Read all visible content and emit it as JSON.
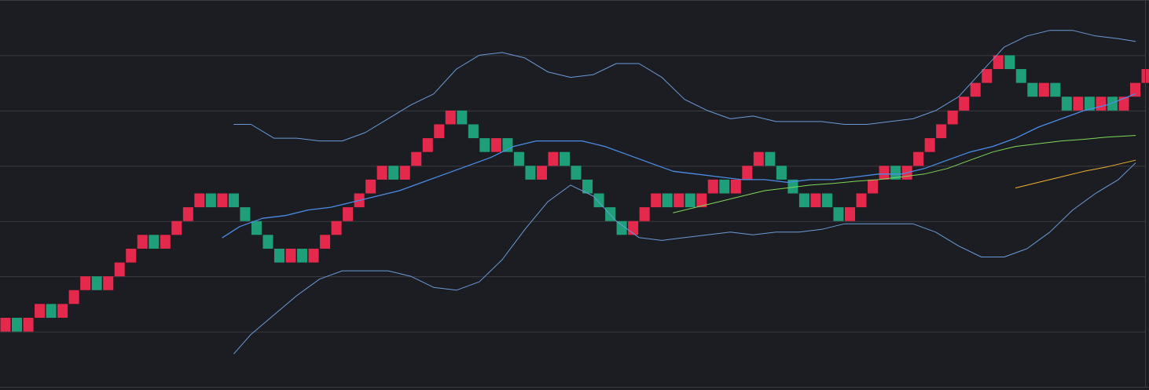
{
  "chart_data": {
    "type": "renko",
    "title": "",
    "xlabel": "",
    "ylabel": "",
    "grid": true,
    "ylim": [
      0,
      7
    ],
    "bricks": [
      {
        "col": 0,
        "low": 1.0,
        "dir": "up"
      },
      {
        "col": 1,
        "low": 1.0,
        "dir": "down"
      },
      {
        "col": 2,
        "low": 1.0,
        "dir": "up"
      },
      {
        "col": 3,
        "low": 1.25,
        "dir": "up"
      },
      {
        "col": 4,
        "low": 1.25,
        "dir": "down"
      },
      {
        "col": 5,
        "low": 1.25,
        "dir": "up"
      },
      {
        "col": 6,
        "low": 1.5,
        "dir": "up"
      },
      {
        "col": 7,
        "low": 1.75,
        "dir": "up"
      },
      {
        "col": 8,
        "low": 1.75,
        "dir": "down"
      },
      {
        "col": 9,
        "low": 1.75,
        "dir": "up"
      },
      {
        "col": 10,
        "low": 2.0,
        "dir": "up"
      },
      {
        "col": 11,
        "low": 2.25,
        "dir": "up"
      },
      {
        "col": 12,
        "low": 2.5,
        "dir": "up"
      },
      {
        "col": 13,
        "low": 2.5,
        "dir": "down"
      },
      {
        "col": 14,
        "low": 2.5,
        "dir": "up"
      },
      {
        "col": 15,
        "low": 2.75,
        "dir": "up"
      },
      {
        "col": 16,
        "low": 3.0,
        "dir": "up"
      },
      {
        "col": 17,
        "low": 3.25,
        "dir": "up"
      },
      {
        "col": 18,
        "low": 3.25,
        "dir": "down"
      },
      {
        "col": 19,
        "low": 3.25,
        "dir": "up"
      },
      {
        "col": 20,
        "low": 3.25,
        "dir": "down"
      },
      {
        "col": 21,
        "low": 3.0,
        "dir": "down"
      },
      {
        "col": 22,
        "low": 2.75,
        "dir": "down"
      },
      {
        "col": 23,
        "low": 2.5,
        "dir": "down"
      },
      {
        "col": 24,
        "low": 2.25,
        "dir": "down"
      },
      {
        "col": 25,
        "low": 2.25,
        "dir": "up"
      },
      {
        "col": 26,
        "low": 2.25,
        "dir": "down"
      },
      {
        "col": 27,
        "low": 2.25,
        "dir": "up"
      },
      {
        "col": 28,
        "low": 2.5,
        "dir": "up"
      },
      {
        "col": 29,
        "low": 2.75,
        "dir": "up"
      },
      {
        "col": 30,
        "low": 3.0,
        "dir": "up"
      },
      {
        "col": 31,
        "low": 3.25,
        "dir": "up"
      },
      {
        "col": 32,
        "low": 3.5,
        "dir": "up"
      },
      {
        "col": 33,
        "low": 3.75,
        "dir": "up"
      },
      {
        "col": 34,
        "low": 3.75,
        "dir": "down"
      },
      {
        "col": 35,
        "low": 3.75,
        "dir": "up"
      },
      {
        "col": 36,
        "low": 4.0,
        "dir": "up"
      },
      {
        "col": 37,
        "low": 4.25,
        "dir": "up"
      },
      {
        "col": 38,
        "low": 4.5,
        "dir": "up"
      },
      {
        "col": 39,
        "low": 4.75,
        "dir": "up"
      },
      {
        "col": 40,
        "low": 4.75,
        "dir": "down"
      },
      {
        "col": 41,
        "low": 4.5,
        "dir": "down"
      },
      {
        "col": 42,
        "low": 4.25,
        "dir": "down"
      },
      {
        "col": 43,
        "low": 4.25,
        "dir": "up"
      },
      {
        "col": 44,
        "low": 4.25,
        "dir": "down"
      },
      {
        "col": 45,
        "low": 4.0,
        "dir": "down"
      },
      {
        "col": 46,
        "low": 3.75,
        "dir": "down"
      },
      {
        "col": 47,
        "low": 3.75,
        "dir": "up"
      },
      {
        "col": 48,
        "low": 4.0,
        "dir": "up"
      },
      {
        "col": 49,
        "low": 4.0,
        "dir": "down"
      },
      {
        "col": 50,
        "low": 3.75,
        "dir": "down"
      },
      {
        "col": 51,
        "low": 3.5,
        "dir": "down"
      },
      {
        "col": 52,
        "low": 3.25,
        "dir": "down"
      },
      {
        "col": 53,
        "low": 3.0,
        "dir": "down"
      },
      {
        "col": 54,
        "low": 2.75,
        "dir": "down"
      },
      {
        "col": 55,
        "low": 2.75,
        "dir": "up"
      },
      {
        "col": 56,
        "low": 3.0,
        "dir": "up"
      },
      {
        "col": 57,
        "low": 3.25,
        "dir": "up"
      },
      {
        "col": 58,
        "low": 3.25,
        "dir": "down"
      },
      {
        "col": 59,
        "low": 3.25,
        "dir": "up"
      },
      {
        "col": 60,
        "low": 3.25,
        "dir": "down"
      },
      {
        "col": 61,
        "low": 3.25,
        "dir": "up"
      },
      {
        "col": 62,
        "low": 3.5,
        "dir": "up"
      },
      {
        "col": 63,
        "low": 3.5,
        "dir": "down"
      },
      {
        "col": 64,
        "low": 3.5,
        "dir": "up"
      },
      {
        "col": 65,
        "low": 3.75,
        "dir": "up"
      },
      {
        "col": 66,
        "low": 4.0,
        "dir": "up"
      },
      {
        "col": 67,
        "low": 4.0,
        "dir": "down"
      },
      {
        "col": 68,
        "low": 3.75,
        "dir": "down"
      },
      {
        "col": 69,
        "low": 3.5,
        "dir": "down"
      },
      {
        "col": 70,
        "low": 3.25,
        "dir": "down"
      },
      {
        "col": 71,
        "low": 3.25,
        "dir": "up"
      },
      {
        "col": 72,
        "low": 3.25,
        "dir": "down"
      },
      {
        "col": 73,
        "low": 3.0,
        "dir": "down"
      },
      {
        "col": 74,
        "low": 3.0,
        "dir": "up"
      },
      {
        "col": 75,
        "low": 3.25,
        "dir": "up"
      },
      {
        "col": 76,
        "low": 3.5,
        "dir": "up"
      },
      {
        "col": 77,
        "low": 3.75,
        "dir": "up"
      },
      {
        "col": 78,
        "low": 3.75,
        "dir": "down"
      },
      {
        "col": 79,
        "low": 3.75,
        "dir": "up"
      },
      {
        "col": 80,
        "low": 4.0,
        "dir": "up"
      },
      {
        "col": 81,
        "low": 4.25,
        "dir": "up"
      },
      {
        "col": 82,
        "low": 4.5,
        "dir": "up"
      },
      {
        "col": 83,
        "low": 4.75,
        "dir": "up"
      },
      {
        "col": 84,
        "low": 5.0,
        "dir": "up"
      },
      {
        "col": 85,
        "low": 5.25,
        "dir": "up"
      },
      {
        "col": 86,
        "low": 5.5,
        "dir": "up"
      },
      {
        "col": 87,
        "low": 5.75,
        "dir": "up"
      },
      {
        "col": 88,
        "low": 5.75,
        "dir": "down"
      },
      {
        "col": 89,
        "low": 5.5,
        "dir": "down"
      },
      {
        "col": 90,
        "low": 5.25,
        "dir": "down"
      },
      {
        "col": 91,
        "low": 5.25,
        "dir": "up"
      },
      {
        "col": 92,
        "low": 5.25,
        "dir": "down"
      },
      {
        "col": 93,
        "low": 5.0,
        "dir": "down"
      },
      {
        "col": 94,
        "low": 5.0,
        "dir": "up"
      },
      {
        "col": 95,
        "low": 5.0,
        "dir": "down"
      },
      {
        "col": 96,
        "low": 5.0,
        "dir": "up"
      },
      {
        "col": 97,
        "low": 5.0,
        "dir": "down"
      },
      {
        "col": 98,
        "low": 5.0,
        "dir": "up"
      },
      {
        "col": 99,
        "low": 5.25,
        "dir": "up"
      },
      {
        "col": 100,
        "low": 5.5,
        "dir": "up"
      }
    ],
    "brick_size": 0.25,
    "series": [
      {
        "name": "",
        "color": "#6a9bd8",
        "kind": "upper-band",
        "points": [
          [
            20.5,
            4.75
          ],
          [
            22,
            4.75
          ],
          [
            24,
            4.5
          ],
          [
            26,
            4.5
          ],
          [
            28,
            4.45
          ],
          [
            30,
            4.45
          ],
          [
            32,
            4.6
          ],
          [
            34,
            4.85
          ],
          [
            36,
            5.1
          ],
          [
            38,
            5.3
          ],
          [
            40,
            5.75
          ],
          [
            42,
            6.0
          ],
          [
            44,
            6.05
          ],
          [
            46,
            5.95
          ],
          [
            48,
            5.7
          ],
          [
            50,
            5.6
          ],
          [
            52,
            5.65
          ],
          [
            54,
            5.85
          ],
          [
            56,
            5.85
          ],
          [
            58,
            5.6
          ],
          [
            60,
            5.2
          ],
          [
            62,
            5.0
          ],
          [
            64,
            4.85
          ],
          [
            66,
            4.9
          ],
          [
            68,
            4.8
          ],
          [
            70,
            4.8
          ],
          [
            72,
            4.8
          ],
          [
            74,
            4.75
          ],
          [
            76,
            4.75
          ],
          [
            78,
            4.8
          ],
          [
            80,
            4.85
          ],
          [
            82,
            5.0
          ],
          [
            84,
            5.25
          ],
          [
            86,
            5.7
          ],
          [
            88,
            6.15
          ],
          [
            90,
            6.35
          ],
          [
            92,
            6.45
          ],
          [
            94,
            6.45
          ],
          [
            96,
            6.35
          ],
          [
            98,
            6.3
          ],
          [
            99.5,
            6.25
          ]
        ]
      },
      {
        "name": "",
        "color": "#4a8de8",
        "kind": "middle-band",
        "points": [
          [
            19.5,
            2.7
          ],
          [
            21,
            2.9
          ],
          [
            23,
            3.05
          ],
          [
            25,
            3.1
          ],
          [
            27,
            3.2
          ],
          [
            29,
            3.25
          ],
          [
            31,
            3.35
          ],
          [
            33,
            3.45
          ],
          [
            35,
            3.55
          ],
          [
            37,
            3.7
          ],
          [
            39,
            3.85
          ],
          [
            41,
            4.0
          ],
          [
            43,
            4.15
          ],
          [
            45,
            4.35
          ],
          [
            47,
            4.45
          ],
          [
            49,
            4.45
          ],
          [
            51,
            4.45
          ],
          [
            53,
            4.35
          ],
          [
            55,
            4.2
          ],
          [
            57,
            4.05
          ],
          [
            59,
            3.9
          ],
          [
            61,
            3.85
          ],
          [
            63,
            3.8
          ],
          [
            65,
            3.75
          ],
          [
            67,
            3.75
          ],
          [
            69,
            3.7
          ],
          [
            71,
            3.75
          ],
          [
            73,
            3.75
          ],
          [
            75,
            3.8
          ],
          [
            77,
            3.85
          ],
          [
            79,
            3.85
          ],
          [
            81,
            3.95
          ],
          [
            83,
            4.1
          ],
          [
            85,
            4.25
          ],
          [
            87,
            4.35
          ],
          [
            89,
            4.5
          ],
          [
            91,
            4.7
          ],
          [
            93,
            4.85
          ],
          [
            95,
            5.0
          ],
          [
            97,
            5.1
          ],
          [
            99.5,
            5.3
          ]
        ]
      },
      {
        "name": "",
        "color": "#6a9bd8",
        "kind": "lower-band",
        "points": [
          [
            20.5,
            0.6
          ],
          [
            22,
            0.95
          ],
          [
            24,
            1.3
          ],
          [
            26,
            1.65
          ],
          [
            28,
            1.95
          ],
          [
            30,
            2.1
          ],
          [
            32,
            2.1
          ],
          [
            34,
            2.1
          ],
          [
            36,
            2.0
          ],
          [
            38,
            1.8
          ],
          [
            40,
            1.75
          ],
          [
            42,
            1.9
          ],
          [
            44,
            2.3
          ],
          [
            46,
            2.85
          ],
          [
            48,
            3.35
          ],
          [
            50,
            3.65
          ],
          [
            52,
            3.45
          ],
          [
            54,
            3.0
          ],
          [
            56,
            2.7
          ],
          [
            58,
            2.65
          ],
          [
            60,
            2.7
          ],
          [
            62,
            2.75
          ],
          [
            64,
            2.8
          ],
          [
            66,
            2.75
          ],
          [
            68,
            2.8
          ],
          [
            70,
            2.8
          ],
          [
            72,
            2.85
          ],
          [
            74,
            2.95
          ],
          [
            76,
            2.95
          ],
          [
            78,
            2.95
          ],
          [
            80,
            2.95
          ],
          [
            82,
            2.8
          ],
          [
            84,
            2.55
          ],
          [
            86,
            2.35
          ],
          [
            88,
            2.35
          ],
          [
            90,
            2.5
          ],
          [
            92,
            2.8
          ],
          [
            94,
            3.2
          ],
          [
            96,
            3.5
          ],
          [
            98,
            3.75
          ],
          [
            99.5,
            4.05
          ]
        ]
      },
      {
        "name": "",
        "color": "#7ed957",
        "kind": "ma",
        "points": [
          [
            59,
            3.15
          ],
          [
            61,
            3.25
          ],
          [
            63,
            3.35
          ],
          [
            65,
            3.45
          ],
          [
            67,
            3.55
          ],
          [
            69,
            3.6
          ],
          [
            71,
            3.65
          ],
          [
            73,
            3.68
          ],
          [
            75,
            3.72
          ],
          [
            77,
            3.75
          ],
          [
            79,
            3.8
          ],
          [
            81,
            3.85
          ],
          [
            83,
            3.95
          ],
          [
            85,
            4.1
          ],
          [
            87,
            4.25
          ],
          [
            89,
            4.35
          ],
          [
            91,
            4.4
          ],
          [
            93,
            4.45
          ],
          [
            95,
            4.48
          ],
          [
            97,
            4.52
          ],
          [
            99.5,
            4.55
          ]
        ]
      },
      {
        "name": "",
        "color": "#f2b233",
        "kind": "ma",
        "points": [
          [
            89,
            3.6
          ],
          [
            91,
            3.7
          ],
          [
            93,
            3.8
          ],
          [
            95,
            3.9
          ],
          [
            97,
            3.98
          ],
          [
            99.5,
            4.1
          ]
        ]
      }
    ],
    "colors": {
      "background": "#1c1d22",
      "grid": "#3a3b41",
      "up": "#e5294d",
      "down": "#1f9e7a",
      "frame": "#3a3b41"
    }
  }
}
